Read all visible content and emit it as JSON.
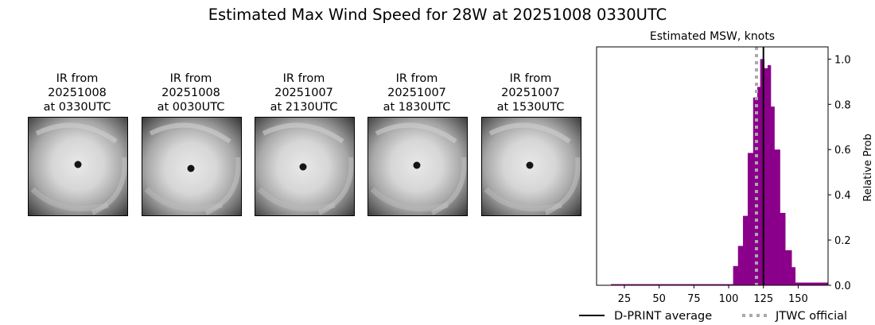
{
  "title": "Estimated Max Wind Speed for 28W at 20251008 0330UTC",
  "ir_panels": [
    {
      "line1": "IR from",
      "line2": "20251008",
      "line3": "at 0330UTC"
    },
    {
      "line1": "IR from",
      "line2": "20251008",
      "line3": "at 0030UTC"
    },
    {
      "line1": "IR from",
      "line2": "20251007",
      "line3": "at 2130UTC"
    },
    {
      "line1": "IR from",
      "line2": "20251007",
      "line3": "at 1830UTC"
    },
    {
      "line1": "IR from",
      "line2": "20251007",
      "line3": "at 1530UTC"
    }
  ],
  "chart_data": {
    "type": "bar",
    "title": "Estimated MSW, knots",
    "xlabel": "",
    "ylabel": "Relative Prob",
    "xlim": [
      5,
      171.5
    ],
    "ylim": [
      0,
      1.054
    ],
    "xticks": [
      25,
      50,
      75,
      100,
      125,
      150
    ],
    "yticks": [
      0.0,
      0.2,
      0.4,
      0.6,
      0.8,
      1.0
    ],
    "ytick_labels": [
      "0.0",
      "0.2",
      "0.4",
      "0.6",
      "0.8",
      "1.0"
    ],
    "y_axis_side": "right",
    "grid": false,
    "bar_color": "#8b008b",
    "bins": [
      {
        "from": 15.3,
        "to": 103.2,
        "value": 0.005
      },
      {
        "from": 103.2,
        "to": 106.7,
        "value": 0.085
      },
      {
        "from": 106.7,
        "to": 110.3,
        "value": 0.174
      },
      {
        "from": 110.3,
        "to": 113.7,
        "value": 0.307
      },
      {
        "from": 113.7,
        "to": 117.6,
        "value": 0.585
      },
      {
        "from": 117.6,
        "to": 120.6,
        "value": 0.83
      },
      {
        "from": 120.6,
        "to": 122.7,
        "value": 0.877
      },
      {
        "from": 122.7,
        "to": 125.6,
        "value": 1.0
      },
      {
        "from": 125.6,
        "to": 128.0,
        "value": 0.96
      },
      {
        "from": 128.0,
        "to": 130.3,
        "value": 0.973
      },
      {
        "from": 130.3,
        "to": 132.9,
        "value": 0.79
      },
      {
        "from": 132.9,
        "to": 136.9,
        "value": 0.6
      },
      {
        "from": 136.9,
        "to": 140.7,
        "value": 0.32
      },
      {
        "from": 140.7,
        "to": 145.3,
        "value": 0.155
      },
      {
        "from": 145.3,
        "to": 147.9,
        "value": 0.08
      },
      {
        "from": 147.9,
        "to": 171.6,
        "value": 0.012
      }
    ],
    "lines": [
      {
        "name": "D-PRINT average",
        "x": 125,
        "color": "#000000",
        "style": "solid"
      },
      {
        "name": "JTWC official",
        "x": 120,
        "color": "#aaaaaa",
        "style": "dotted"
      }
    ],
    "legend_placement": "bottom"
  }
}
